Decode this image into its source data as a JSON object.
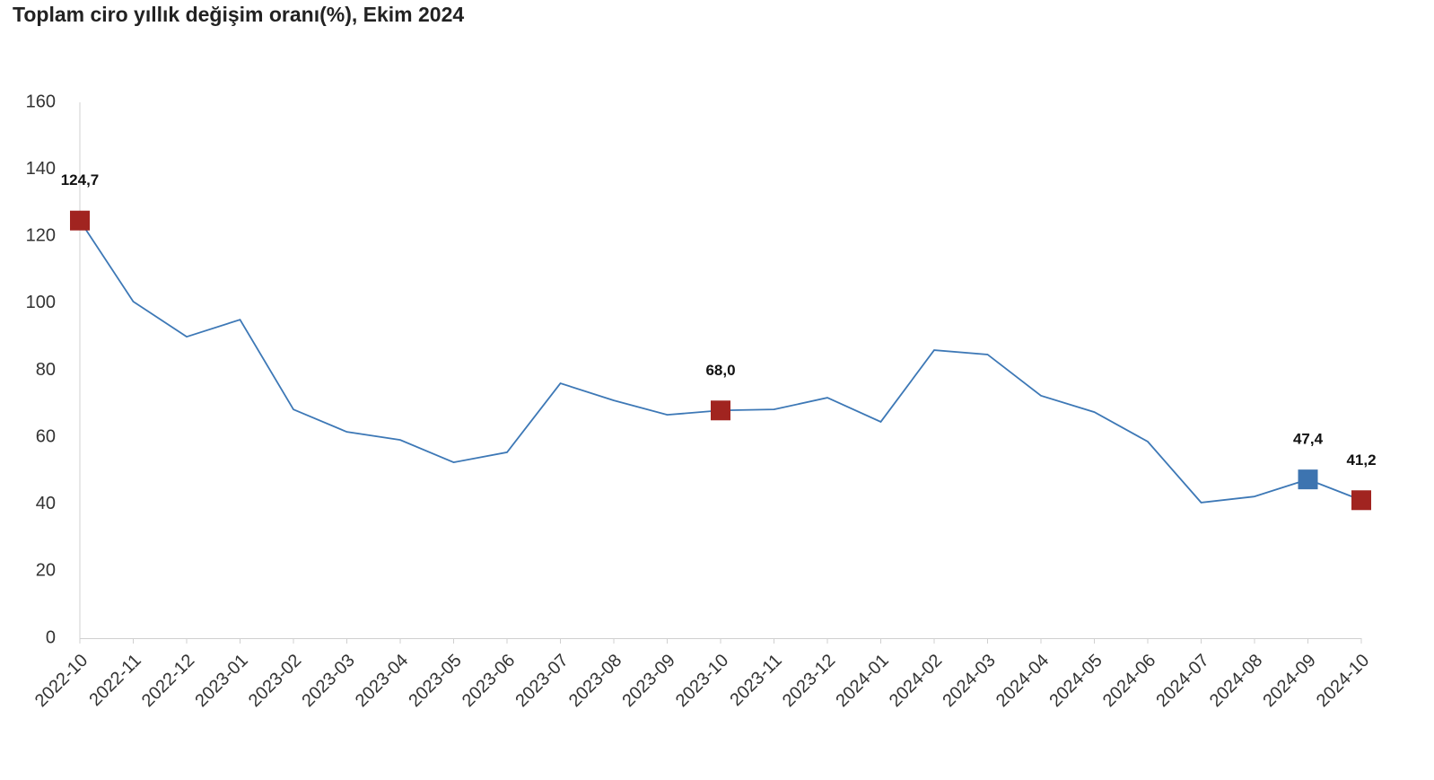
{
  "chart_data": {
    "type": "line",
    "title": "Toplam ciro yıllık değişim oranı(%), Ekim 2024",
    "categories": [
      "2022-10",
      "2022-11",
      "2022-12",
      "2023-01",
      "2023-02",
      "2023-03",
      "2023-04",
      "2023-05",
      "2023-06",
      "2023-07",
      "2023-08",
      "2023-09",
      "2023-10",
      "2023-11",
      "2023-12",
      "2024-01",
      "2024-02",
      "2024-03",
      "2024-04",
      "2024-05",
      "2024-06",
      "2024-07",
      "2024-08",
      "2024-09",
      "2024-10"
    ],
    "values": [
      124.7,
      100.5,
      90.0,
      95.1,
      68.3,
      61.6,
      59.2,
      52.5,
      55.5,
      76.1,
      71.0,
      66.7,
      68.0,
      68.3,
      71.8,
      64.6,
      86.0,
      84.7,
      72.4,
      67.5,
      58.7,
      40.5,
      42.3,
      47.4,
      41.2
    ],
    "value_labels": [
      "124,7",
      null,
      null,
      null,
      null,
      null,
      null,
      null,
      null,
      null,
      null,
      null,
      "68,0",
      null,
      null,
      null,
      null,
      null,
      null,
      null,
      null,
      null,
      null,
      "47,4",
      "41,2"
    ],
    "color": "#3d78b6",
    "marker_colors": [
      "#a12420",
      null,
      null,
      null,
      null,
      null,
      null,
      null,
      null,
      null,
      null,
      null,
      "#a12420",
      null,
      null,
      null,
      null,
      null,
      null,
      null,
      null,
      null,
      null,
      "#3d74b0",
      "#a12420"
    ],
    "ylim": [
      0,
      160
    ],
    "yticks": [
      0,
      20,
      40,
      60,
      80,
      100,
      120,
      140,
      160
    ],
    "grid": false
  }
}
